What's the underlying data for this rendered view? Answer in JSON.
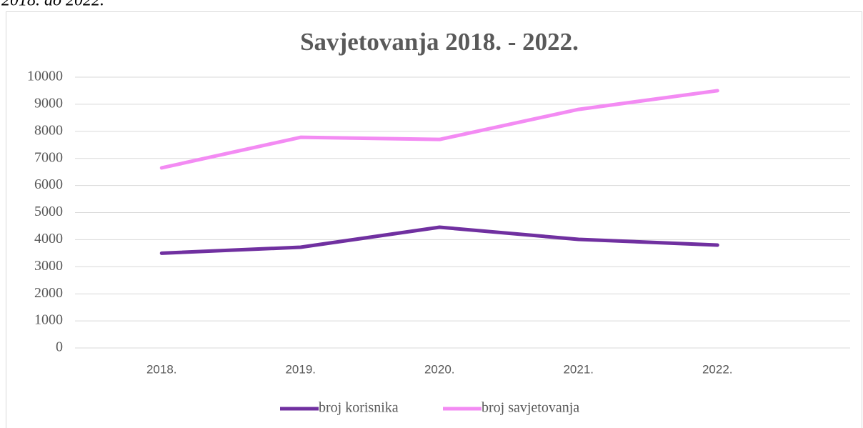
{
  "caption": "2018. do 2022.",
  "chart_data": {
    "type": "line",
    "title": "Savjetovanja 2018. - 2022.",
    "categories": [
      "2018.",
      "2019.",
      "2020.",
      "2021.",
      "2022."
    ],
    "series": [
      {
        "name": "broj korisnika",
        "color": "#7030a0",
        "values": [
          3500,
          3720,
          4460,
          4010,
          3800
        ]
      },
      {
        "name": "broj savjetovanja",
        "color": "#f38bf3",
        "values": [
          6650,
          7780,
          7700,
          8810,
          9500
        ]
      }
    ],
    "ylim": [
      0,
      10000
    ],
    "yticks": [
      0,
      1000,
      2000,
      3000,
      4000,
      5000,
      6000,
      7000,
      8000,
      9000,
      10000
    ],
    "grid": true,
    "legend": "bottom"
  }
}
